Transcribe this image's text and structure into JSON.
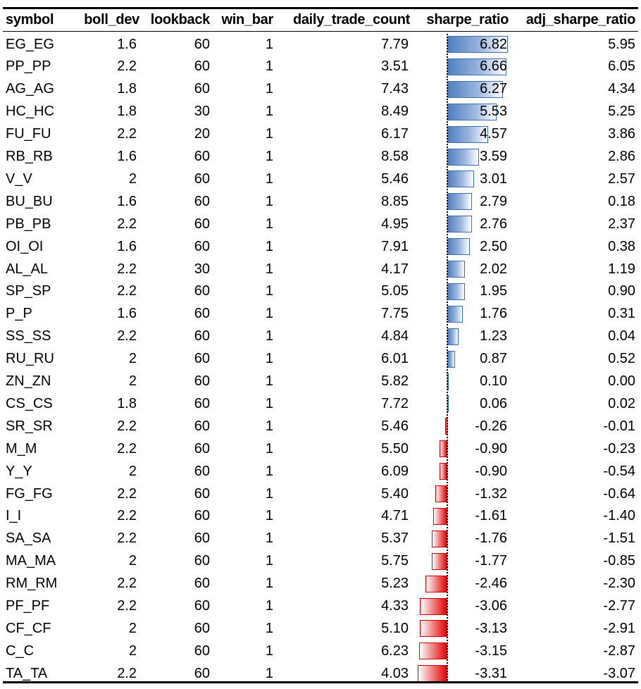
{
  "headers": {
    "symbol": "symbol",
    "boll_dev": "boll_dev",
    "lookback": "lookback",
    "win_bar": "win_bar",
    "daily_trade_count": "daily_trade_count",
    "sharpe_ratio": "sharpe_ratio",
    "adj_sharpe_ratio": "adj_sharpe_ratio"
  },
  "rows": [
    {
      "symbol": "EG_EG",
      "boll_dev": "1.6",
      "lookback": "60",
      "win_bar": "1",
      "daily_trade_count": "7.79",
      "sharpe_ratio": "6.82",
      "adj_sharpe_ratio": "5.95",
      "sharpe_value": 6.82
    },
    {
      "symbol": "PP_PP",
      "boll_dev": "2.2",
      "lookback": "60",
      "win_bar": "1",
      "daily_trade_count": "3.51",
      "sharpe_ratio": "6.66",
      "adj_sharpe_ratio": "6.05",
      "sharpe_value": 6.66
    },
    {
      "symbol": "AG_AG",
      "boll_dev": "1.8",
      "lookback": "60",
      "win_bar": "1",
      "daily_trade_count": "7.43",
      "sharpe_ratio": "6.27",
      "adj_sharpe_ratio": "4.34",
      "sharpe_value": 6.27
    },
    {
      "symbol": "HC_HC",
      "boll_dev": "1.8",
      "lookback": "30",
      "win_bar": "1",
      "daily_trade_count": "8.49",
      "sharpe_ratio": "5.53",
      "adj_sharpe_ratio": "5.25",
      "sharpe_value": 5.53
    },
    {
      "symbol": "FU_FU",
      "boll_dev": "2.2",
      "lookback": "20",
      "win_bar": "1",
      "daily_trade_count": "6.17",
      "sharpe_ratio": "4.57",
      "adj_sharpe_ratio": "3.86",
      "sharpe_value": 4.57
    },
    {
      "symbol": "RB_RB",
      "boll_dev": "1.6",
      "lookback": "60",
      "win_bar": "1",
      "daily_trade_count": "8.58",
      "sharpe_ratio": "3.59",
      "adj_sharpe_ratio": "2.86",
      "sharpe_value": 3.59
    },
    {
      "symbol": "V_V",
      "boll_dev": "2",
      "lookback": "60",
      "win_bar": "1",
      "daily_trade_count": "5.46",
      "sharpe_ratio": "3.01",
      "adj_sharpe_ratio": "2.57",
      "sharpe_value": 3.01
    },
    {
      "symbol": "BU_BU",
      "boll_dev": "1.6",
      "lookback": "60",
      "win_bar": "1",
      "daily_trade_count": "8.85",
      "sharpe_ratio": "2.79",
      "adj_sharpe_ratio": "0.18",
      "sharpe_value": 2.79
    },
    {
      "symbol": "PB_PB",
      "boll_dev": "2.2",
      "lookback": "60",
      "win_bar": "1",
      "daily_trade_count": "4.95",
      "sharpe_ratio": "2.76",
      "adj_sharpe_ratio": "2.37",
      "sharpe_value": 2.76
    },
    {
      "symbol": "OI_OI",
      "boll_dev": "1.6",
      "lookback": "60",
      "win_bar": "1",
      "daily_trade_count": "7.91",
      "sharpe_ratio": "2.50",
      "adj_sharpe_ratio": "0.38",
      "sharpe_value": 2.5
    },
    {
      "symbol": "AL_AL",
      "boll_dev": "2.2",
      "lookback": "30",
      "win_bar": "1",
      "daily_trade_count": "4.17",
      "sharpe_ratio": "2.02",
      "adj_sharpe_ratio": "1.19",
      "sharpe_value": 2.02
    },
    {
      "symbol": "SP_SP",
      "boll_dev": "2.2",
      "lookback": "60",
      "win_bar": "1",
      "daily_trade_count": "5.05",
      "sharpe_ratio": "1.95",
      "adj_sharpe_ratio": "0.90",
      "sharpe_value": 1.95
    },
    {
      "symbol": "P_P",
      "boll_dev": "1.6",
      "lookback": "60",
      "win_bar": "1",
      "daily_trade_count": "7.75",
      "sharpe_ratio": "1.76",
      "adj_sharpe_ratio": "0.31",
      "sharpe_value": 1.76
    },
    {
      "symbol": "SS_SS",
      "boll_dev": "2.2",
      "lookback": "60",
      "win_bar": "1",
      "daily_trade_count": "4.84",
      "sharpe_ratio": "1.23",
      "adj_sharpe_ratio": "0.04",
      "sharpe_value": 1.23
    },
    {
      "symbol": "RU_RU",
      "boll_dev": "2",
      "lookback": "60",
      "win_bar": "1",
      "daily_trade_count": "6.01",
      "sharpe_ratio": "0.87",
      "adj_sharpe_ratio": "0.52",
      "sharpe_value": 0.87
    },
    {
      "symbol": "ZN_ZN",
      "boll_dev": "2",
      "lookback": "60",
      "win_bar": "1",
      "daily_trade_count": "5.82",
      "sharpe_ratio": "0.10",
      "adj_sharpe_ratio": "0.00",
      "sharpe_value": 0.1
    },
    {
      "symbol": "CS_CS",
      "boll_dev": "1.8",
      "lookback": "60",
      "win_bar": "1",
      "daily_trade_count": "7.72",
      "sharpe_ratio": "0.06",
      "adj_sharpe_ratio": "0.02",
      "sharpe_value": 0.06
    },
    {
      "symbol": "SR_SR",
      "boll_dev": "2.2",
      "lookback": "60",
      "win_bar": "1",
      "daily_trade_count": "5.46",
      "sharpe_ratio": "-0.26",
      "adj_sharpe_ratio": "-0.01",
      "sharpe_value": -0.26
    },
    {
      "symbol": "M_M",
      "boll_dev": "2.2",
      "lookback": "60",
      "win_bar": "1",
      "daily_trade_count": "5.50",
      "sharpe_ratio": "-0.90",
      "adj_sharpe_ratio": "-0.23",
      "sharpe_value": -0.9
    },
    {
      "symbol": "Y_Y",
      "boll_dev": "2",
      "lookback": "60",
      "win_bar": "1",
      "daily_trade_count": "6.09",
      "sharpe_ratio": "-0.90",
      "adj_sharpe_ratio": "-0.54",
      "sharpe_value": -0.9
    },
    {
      "symbol": "FG_FG",
      "boll_dev": "2.2",
      "lookback": "60",
      "win_bar": "1",
      "daily_trade_count": "5.40",
      "sharpe_ratio": "-1.32",
      "adj_sharpe_ratio": "-0.64",
      "sharpe_value": -1.32
    },
    {
      "symbol": "I_I",
      "boll_dev": "2.2",
      "lookback": "60",
      "win_bar": "1",
      "daily_trade_count": "4.71",
      "sharpe_ratio": "-1.61",
      "adj_sharpe_ratio": "-1.40",
      "sharpe_value": -1.61
    },
    {
      "symbol": "SA_SA",
      "boll_dev": "2.2",
      "lookback": "60",
      "win_bar": "1",
      "daily_trade_count": "5.37",
      "sharpe_ratio": "-1.76",
      "adj_sharpe_ratio": "-1.51",
      "sharpe_value": -1.76
    },
    {
      "symbol": "MA_MA",
      "boll_dev": "2",
      "lookback": "60",
      "win_bar": "1",
      "daily_trade_count": "5.75",
      "sharpe_ratio": "-1.77",
      "adj_sharpe_ratio": "-0.85",
      "sharpe_value": -1.77
    },
    {
      "symbol": "RM_RM",
      "boll_dev": "2.2",
      "lookback": "60",
      "win_bar": "1",
      "daily_trade_count": "5.23",
      "sharpe_ratio": "-2.46",
      "adj_sharpe_ratio": "-2.30",
      "sharpe_value": -2.46
    },
    {
      "symbol": "PF_PF",
      "boll_dev": "2.2",
      "lookback": "60",
      "win_bar": "1",
      "daily_trade_count": "4.33",
      "sharpe_ratio": "-3.06",
      "adj_sharpe_ratio": "-2.77",
      "sharpe_value": -3.06
    },
    {
      "symbol": "CF_CF",
      "boll_dev": "2",
      "lookback": "60",
      "win_bar": "1",
      "daily_trade_count": "5.10",
      "sharpe_ratio": "-3.13",
      "adj_sharpe_ratio": "-2.91",
      "sharpe_value": -3.13
    },
    {
      "symbol": "C_C",
      "boll_dev": "2",
      "lookback": "60",
      "win_bar": "1",
      "daily_trade_count": "6.23",
      "sharpe_ratio": "-3.15",
      "adj_sharpe_ratio": "-2.87",
      "sharpe_value": -3.15
    },
    {
      "symbol": "TA_TA",
      "boll_dev": "2.2",
      "lookback": "60",
      "win_bar": "1",
      "daily_trade_count": "4.03",
      "sharpe_ratio": "-3.31",
      "adj_sharpe_ratio": "-3.07",
      "sharpe_value": -3.31
    }
  ],
  "data_bar_colors": {
    "positive_fill": "#4f7fc0",
    "positive_border": "#3f6db1",
    "negative_fill": "#e60000",
    "negative_border": "#d00000"
  }
}
